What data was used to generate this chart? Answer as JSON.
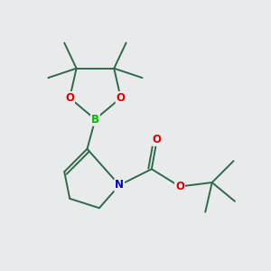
{
  "background_color": "#e8eaeb",
  "bond_color": "#2d6b4a",
  "atom_colors": {
    "B": "#00bb00",
    "O": "#dd0000",
    "N": "#0000cc",
    "C": "#2d6b4a"
  },
  "figsize": [
    3.0,
    3.0
  ],
  "dpi": 100
}
